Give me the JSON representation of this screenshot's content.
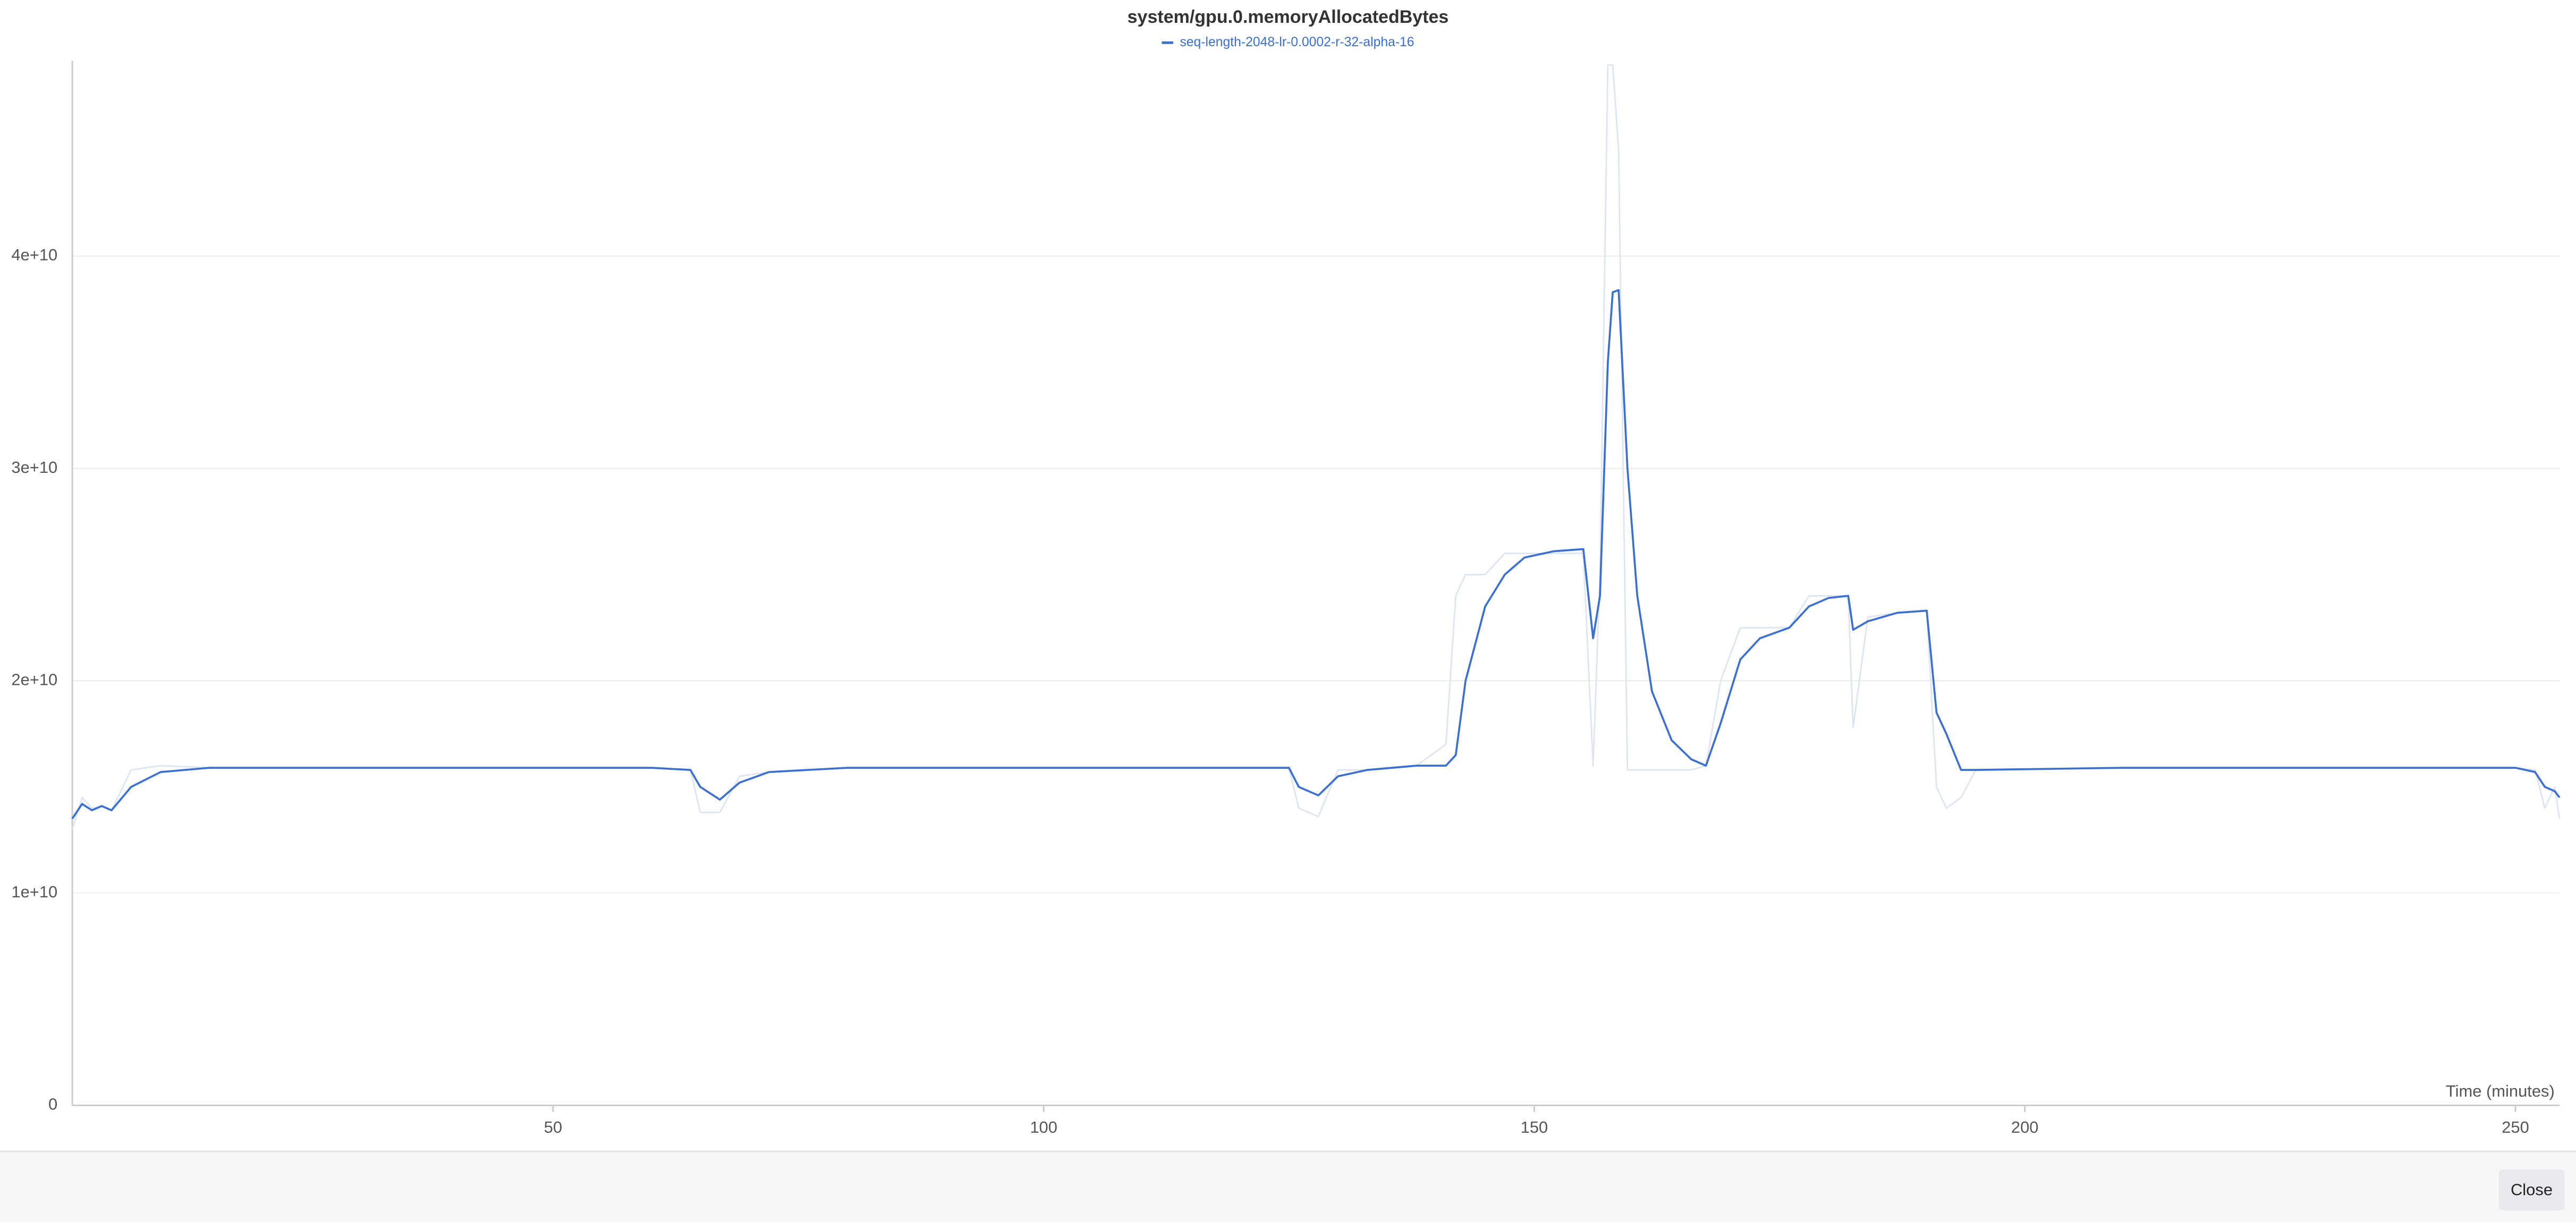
{
  "chart_data": {
    "type": "line",
    "title": "system/gpu.0.memoryAllocatedBytes",
    "x_label": "Time (minutes)",
    "x": [
      1,
      2,
      3,
      4,
      5,
      7,
      10,
      15,
      20,
      30,
      40,
      50,
      60,
      64,
      65,
      67,
      69,
      72,
      80,
      100,
      125,
      126,
      128,
      130,
      133,
      138,
      141,
      142,
      143,
      145,
      147,
      149,
      152,
      155,
      156,
      156.7,
      157.5,
      158,
      158.6,
      159.5,
      160.5,
      162,
      164,
      166,
      167.5,
      169,
      171,
      173,
      176,
      178,
      180,
      182,
      182.5,
      184,
      187,
      190,
      191,
      192,
      193.5,
      195,
      210,
      230,
      250,
      252,
      253,
      254,
      254.5
    ],
    "series": [
      {
        "color": "#dde5f2",
        "values": [
          13000000000.0,
          14500000000.0,
          14000000000.0,
          14100000000.0,
          13900000000.0,
          15800000000.0,
          16000000000.0,
          15900000000.0,
          15900000000.0,
          15900000000.0,
          15900000000.0,
          15900000000.0,
          15900000000.0,
          15800000000.0,
          13800000000.0,
          13800000000.0,
          15500000000.0,
          15700000000.0,
          15900000000.0,
          15900000000.0,
          15900000000.0,
          14000000000.0,
          13600000000.0,
          15800000000.0,
          15800000000.0,
          16000000000.0,
          17000000000.0,
          24000000000.0,
          25000000000.0,
          25000000000.0,
          26000000000.0,
          26000000000.0,
          26000000000.0,
          26000000000.0,
          16000000000.0,
          25000000000.0,
          49000000000.0,
          49000000000.0,
          45000000000.0,
          15800000000.0,
          15800000000.0,
          15800000000.0,
          15800000000.0,
          15800000000.0,
          16000000000.0,
          20000000000.0,
          22500000000.0,
          22500000000.0,
          22500000000.0,
          24000000000.0,
          24000000000.0,
          24000000000.0,
          17800000000.0,
          23000000000.0,
          23200000000.0,
          23300000000.0,
          15000000000.0,
          14000000000.0,
          14500000000.0,
          15800000000.0,
          15900000000.0,
          15900000000.0,
          15900000000.0,
          15800000000.0,
          14000000000.0,
          15000000000.0,
          13500000000.0
        ]
      },
      {
        "name": "seq-length-2048-lr-0.0002-r-32-alpha-16",
        "color": "#3b6fd1",
        "values": [
          13500000000.0,
          14200000000.0,
          13900000000.0,
          14100000000.0,
          13900000000.0,
          15000000000.0,
          15700000000.0,
          15900000000.0,
          15900000000.0,
          15900000000.0,
          15900000000.0,
          15900000000.0,
          15900000000.0,
          15800000000.0,
          15000000000.0,
          14400000000.0,
          15200000000.0,
          15700000000.0,
          15900000000.0,
          15900000000.0,
          15900000000.0,
          15000000000.0,
          14600000000.0,
          15500000000.0,
          15800000000.0,
          16000000000.0,
          16000000000.0,
          16500000000.0,
          20000000000.0,
          23500000000.0,
          25000000000.0,
          25800000000.0,
          26100000000.0,
          26200000000.0,
          22000000000.0,
          24000000000.0,
          35000000000.0,
          38300000000.0,
          38400000000.0,
          30000000000.0,
          24000000000.0,
          19500000000.0,
          17200000000.0,
          16300000000.0,
          16000000000.0,
          18000000000.0,
          21000000000.0,
          22000000000.0,
          22500000000.0,
          23500000000.0,
          23900000000.0,
          24000000000.0,
          22400000000.0,
          22800000000.0,
          23200000000.0,
          23300000000.0,
          18500000000.0,
          17500000000.0,
          15800000000.0,
          15800000000.0,
          15900000000.0,
          15900000000.0,
          15900000000.0,
          15700000000.0,
          15000000000.0,
          14800000000.0,
          14500000000.0
        ]
      }
    ],
    "xlim": [
      1,
      254.5
    ],
    "xticks": [
      50,
      100,
      150,
      200,
      250
    ],
    "ylim": [
      0,
      49200000000.0
    ],
    "yticks": [
      0,
      {
        "value": 10000000000.0,
        "label": "1e+10"
      },
      {
        "value": 20000000000.0,
        "label": "2e+10"
      },
      {
        "value": 30000000000.0,
        "label": "3e+10"
      },
      {
        "value": 40000000000.0,
        "label": "4e+10"
      }
    ],
    "grid": true,
    "legend": "top"
  },
  "footer": {
    "close_button": "Close"
  }
}
